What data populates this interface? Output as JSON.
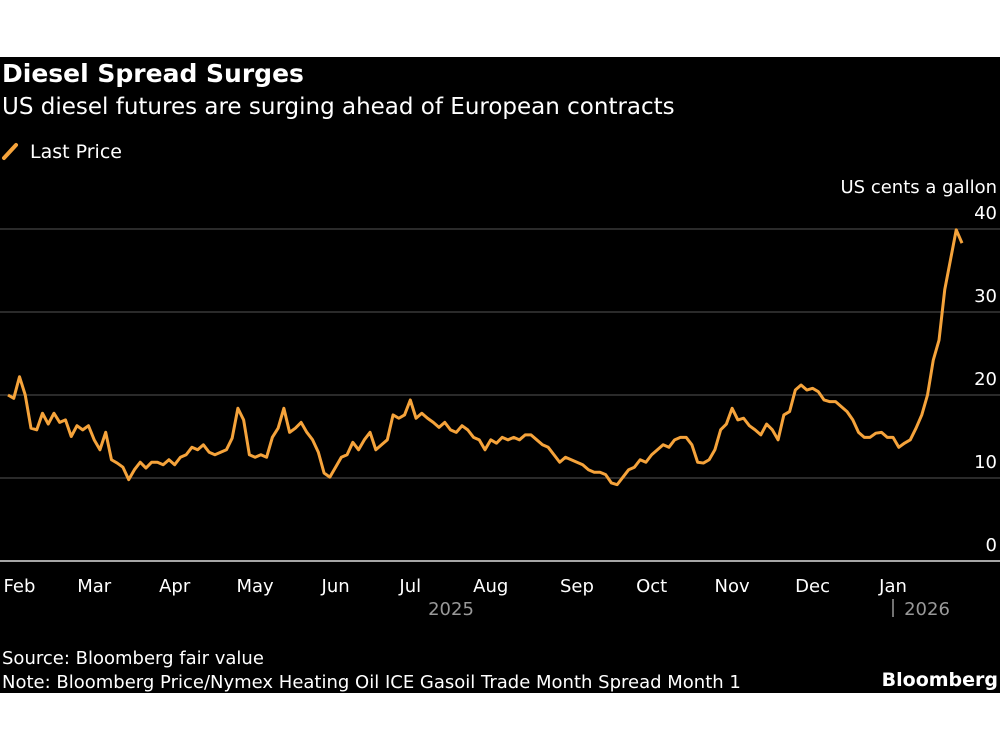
{
  "chart_data": {
    "type": "line",
    "title": "Diesel Spread Surges",
    "subtitle": "US diesel futures are surging ahead of European contracts",
    "y_axis_label": "US cents a gallon",
    "source": "Source: Bloomberg fair value",
    "note": "Note: Bloomberg Price/Nymex Heating Oil ICE Gasoil Trade Month Spread Month 1",
    "brand": "Bloomberg",
    "x_groups": [
      "2025",
      "2026"
    ],
    "categories": [
      null,
      null,
      "Feb",
      null,
      null,
      null,
      null,
      null,
      null,
      null,
      null,
      null,
      null,
      null,
      null,
      "Mar",
      null,
      null,
      null,
      null,
      null,
      null,
      null,
      null,
      null,
      null,
      null,
      null,
      null,
      "Apr",
      null,
      null,
      null,
      null,
      null,
      null,
      null,
      null,
      null,
      null,
      null,
      null,
      null,
      "May",
      null,
      null,
      null,
      null,
      null,
      null,
      null,
      null,
      null,
      null,
      null,
      null,
      null,
      "Jun",
      null,
      null,
      null,
      null,
      null,
      null,
      null,
      null,
      null,
      null,
      null,
      null,
      "Jul",
      null,
      null,
      null,
      null,
      null,
      null,
      null,
      null,
      null,
      null,
      null,
      null,
      null,
      "Aug",
      null,
      null,
      null,
      null,
      null,
      null,
      null,
      null,
      null,
      null,
      null,
      null,
      null,
      null,
      "Sep",
      null,
      null,
      null,
      null,
      null,
      null,
      null,
      null,
      null,
      null,
      null,
      null,
      "Oct",
      null,
      null,
      null,
      null,
      null,
      null,
      null,
      null,
      null,
      null,
      null,
      null,
      null,
      "Nov",
      null,
      null,
      null,
      null,
      null,
      null,
      null,
      null,
      null,
      null,
      null,
      null,
      null,
      "Dec",
      null,
      null,
      null,
      null,
      null,
      null,
      null,
      null,
      null,
      null,
      null,
      null,
      null,
      "Jan",
      null,
      null,
      null,
      null,
      null,
      null,
      null,
      null,
      null,
      null,
      null,
      null
    ],
    "series": [
      {
        "name": "Last Price",
        "color": "#f5a33b",
        "values": [
          20.0,
          19.6,
          22.2,
          20.0,
          16.0,
          15.8,
          17.8,
          16.5,
          17.8,
          16.7,
          17.0,
          15.0,
          16.3,
          15.8,
          16.3,
          14.6,
          13.4,
          15.5,
          12.2,
          11.8,
          11.3,
          9.8,
          11.0,
          11.9,
          11.2,
          11.9,
          11.9,
          11.6,
          12.2,
          11.6,
          12.5,
          12.8,
          13.7,
          13.4,
          14.0,
          13.1,
          12.8,
          13.1,
          13.4,
          14.8,
          18.4,
          17.0,
          12.8,
          12.5,
          12.8,
          12.5,
          14.9,
          16.0,
          18.4,
          15.5,
          16.0,
          16.7,
          15.5,
          14.6,
          13.1,
          10.6,
          10.1,
          11.3,
          12.5,
          12.8,
          14.3,
          13.4,
          14.6,
          15.5,
          13.4,
          14.0,
          14.6,
          17.6,
          17.2,
          17.6,
          19.4,
          17.2,
          17.8,
          17.2,
          16.7,
          16.1,
          16.7,
          15.8,
          15.5,
          16.3,
          15.8,
          14.9,
          14.6,
          13.4,
          14.6,
          14.2,
          14.9,
          14.6,
          14.9,
          14.6,
          15.2,
          15.2,
          14.6,
          14.0,
          13.7,
          12.8,
          11.9,
          12.5,
          12.2,
          11.9,
          11.6,
          11.0,
          10.7,
          10.7,
          10.4,
          9.4,
          9.2,
          10.1,
          11.0,
          11.3,
          12.2,
          11.9,
          12.8,
          13.4,
          14.0,
          13.7,
          14.6,
          14.9,
          14.9,
          14.0,
          11.9,
          11.8,
          12.2,
          13.4,
          15.8,
          16.5,
          18.4,
          17.0,
          17.2,
          16.3,
          15.8,
          15.2,
          16.5,
          15.8,
          14.6,
          17.6,
          18.0,
          20.6,
          21.2,
          20.6,
          20.8,
          20.4,
          19.4,
          19.2,
          19.2,
          18.6,
          18.0,
          17.0,
          15.5,
          14.9,
          14.9,
          15.4,
          15.5,
          14.9,
          14.9,
          13.7,
          14.2,
          14.6,
          16.0,
          17.6,
          20.0,
          24.2,
          26.6,
          32.7,
          36.3,
          39.9,
          38.3
        ]
      }
    ],
    "ylim": [
      0,
      40
    ],
    "yticks": [
      0,
      10,
      20,
      30,
      40
    ],
    "grid": true
  }
}
